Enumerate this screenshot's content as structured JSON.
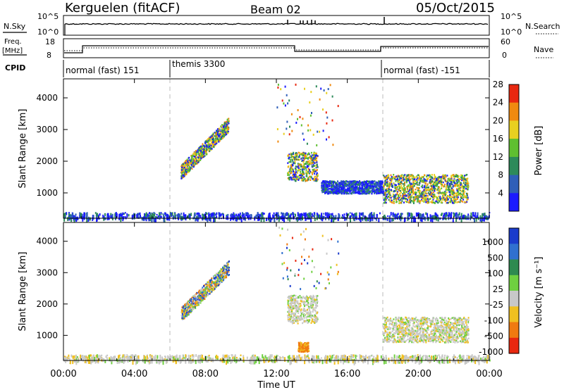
{
  "header": {
    "station": "Kerguelen (fitACF)",
    "beam": "Beam 02",
    "date": "05/Oct/2015"
  },
  "panels": {
    "nsky": {
      "label": "N.Sky",
      "left_ticks": [
        "10^5",
        "10^0"
      ],
      "right_ticks": [
        "10^5",
        "10^0"
      ],
      "right_label": "N.Search"
    },
    "freq": {
      "label": "Freq.",
      "unit": "[MHz]",
      "left_ticks": [
        "18",
        "8"
      ],
      "right_ticks": [
        "60",
        "0"
      ],
      "right_label": "Nave"
    },
    "cpid": {
      "label": "CPID",
      "modes": [
        {
          "text": "normal (fast) 151",
          "start_h": 0
        },
        {
          "text": "themis 3300",
          "start_h": 6
        },
        {
          "text": "normal (fast) -151",
          "start_h": 18
        }
      ]
    }
  },
  "chart_data": [
    {
      "type": "heatmap",
      "title": "",
      "ylabel": "Slant Range [km]",
      "yticks": [
        "1000",
        "2000",
        "3000",
        "4000"
      ],
      "ylim": [
        200,
        4600
      ],
      "xlim": [
        0,
        24
      ],
      "colorbar": {
        "label": "Power [dB]",
        "ticks": [
          "4",
          "8",
          "12",
          "16",
          "20",
          "24",
          "28"
        ],
        "colors": [
          "#1b1bff",
          "#2f5fb8",
          "#2d8a5a",
          "#5fbf30",
          "#e8d020",
          "#f08a10",
          "#e82810"
        ]
      },
      "echo_regions": [
        {
          "t_start": 6.6,
          "t_end": 9.3,
          "r_start": 1700,
          "r_end": 3300,
          "dominant": "yellow-green"
        },
        {
          "t_start": 12.6,
          "t_end": 14.3,
          "r_start": 1400,
          "r_end": 2300,
          "dominant": "yellow-green"
        },
        {
          "t_start": 14.5,
          "t_end": 18,
          "r_start": 1000,
          "r_end": 1400,
          "dominant": "blue"
        },
        {
          "t_start": 18,
          "t_end": 22.8,
          "r_start": 700,
          "r_end": 1600,
          "dominant": "yellow-green"
        },
        {
          "t_start": 0,
          "t_end": 24,
          "r_start": 200,
          "r_end": 400,
          "dominant": "blue"
        }
      ]
    },
    {
      "type": "heatmap",
      "title": "",
      "ylabel": "Slant Range [km]",
      "yticks": [
        "1000",
        "2000",
        "3000",
        "4000"
      ],
      "ylim": [
        200,
        4600
      ],
      "xlim": [
        0,
        24
      ],
      "xlabel": "Time UT",
      "xticks": [
        "00:00",
        "04:00",
        "08:00",
        "12:00",
        "16:00",
        "20:00",
        "00:00"
      ],
      "colorbar": {
        "label": "Velocity [m s⁻¹]",
        "ticks": [
          "1000",
          "500",
          "100",
          "25",
          "-25",
          "-100",
          "-500",
          "-1000"
        ],
        "colors": [
          "#1b3ccc",
          "#3070d0",
          "#2e8a50",
          "#6fd040",
          "#c8c8c8",
          "#f0c020",
          "#f07a10",
          "#e82810"
        ]
      },
      "echo_regions": [
        {
          "t_start": 6.6,
          "t_end": 9.3,
          "r_start": 1700,
          "r_end": 3300,
          "dominant": "mixed"
        },
        {
          "t_start": 12.6,
          "t_end": 14.3,
          "r_start": 1400,
          "r_end": 2300,
          "dominant": "grey"
        },
        {
          "t_start": 13.2,
          "t_end": 13.8,
          "r_start": 500,
          "r_end": 800,
          "dominant": "orange"
        },
        {
          "t_start": 18,
          "t_end": 22.8,
          "r_start": 800,
          "r_end": 1600,
          "dominant": "grey"
        },
        {
          "t_start": 0,
          "t_end": 24,
          "r_start": 200,
          "r_end": 400,
          "dominant": "grey"
        }
      ]
    }
  ]
}
